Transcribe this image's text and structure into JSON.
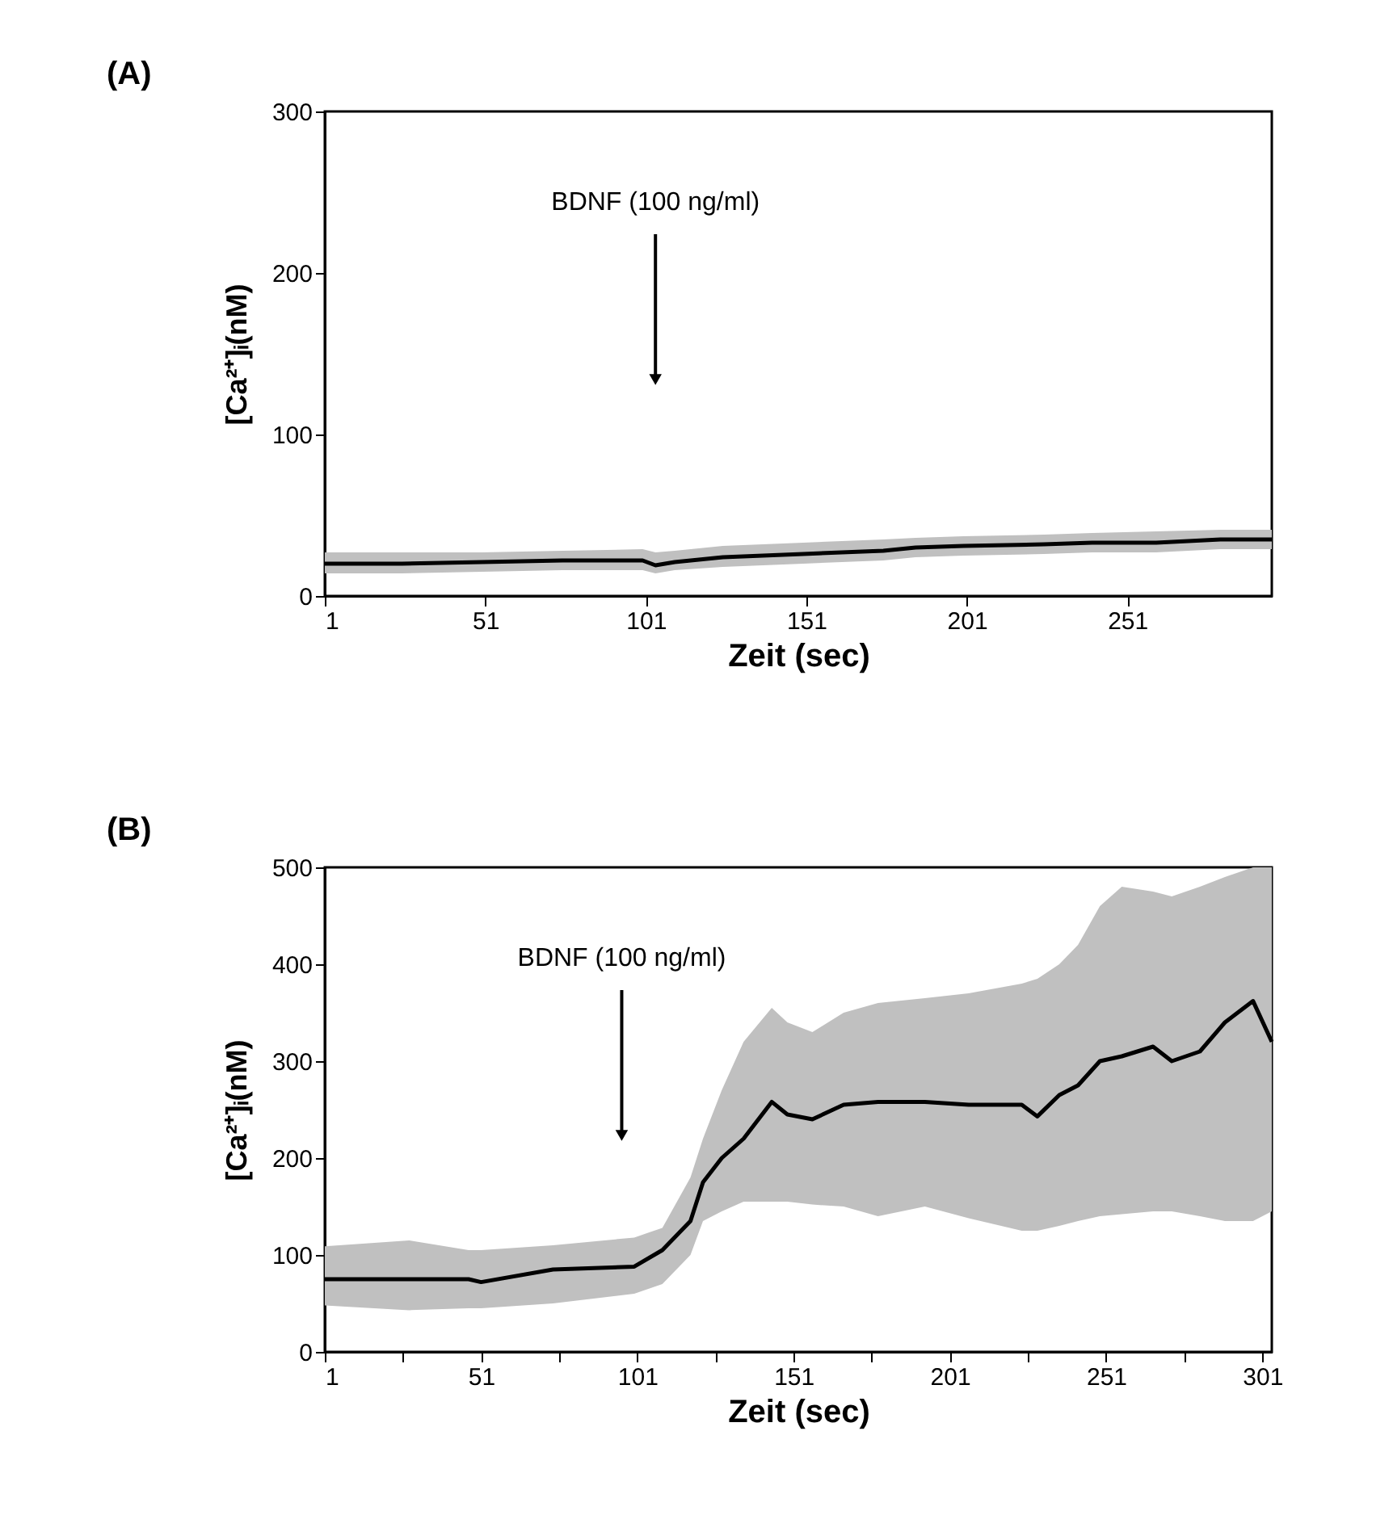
{
  "chart_data": [
    {
      "type": "line",
      "title": "(A)",
      "xlabel": "Zeit (sec)",
      "ylabel": "[Ca²⁺]ᵢ(nM)",
      "xlim": [
        1,
        296
      ],
      "ylim": [
        0,
        300
      ],
      "xticks": [
        1,
        51,
        101,
        151,
        201,
        251
      ],
      "yticks": [
        0,
        100,
        200,
        300
      ],
      "ref_lines": [
        {
          "axis": "x",
          "value": 104,
          "label": "BDNF (100 ng/ml)"
        }
      ],
      "series": [
        {
          "color": "#000000",
          "x": [
            1,
            25,
            50,
            75,
            100,
            104,
            110,
            125,
            150,
            175,
            185,
            200,
            225,
            240,
            260,
            280,
            296
          ],
          "values": [
            20,
            20,
            21,
            22,
            22,
            19,
            21,
            24,
            26,
            28,
            30,
            31,
            32,
            33,
            33,
            35,
            35
          ],
          "lower": [
            14,
            14,
            15,
            16,
            16,
            14,
            16,
            18,
            20,
            22,
            24,
            25,
            26,
            27,
            27,
            29,
            29
          ],
          "upper": [
            27,
            27,
            27,
            28,
            29,
            27,
            28,
            31,
            33,
            35,
            36,
            37,
            38,
            39,
            40,
            41,
            41
          ]
        }
      ]
    },
    {
      "type": "line",
      "title": "(B)",
      "xlabel": "Zeit (sec)",
      "ylabel": "[Ca²⁺]ᵢ(nM)",
      "xlim": [
        1,
        304
      ],
      "ylim": [
        0,
        500
      ],
      "xticks": [
        1,
        {
          "value": 26,
          "label": null
        },
        51,
        {
          "value": 76,
          "label": null
        },
        101,
        {
          "value": 126,
          "label": null
        },
        151,
        {
          "value": 176,
          "label": null
        },
        201,
        {
          "value": 226,
          "label": null
        },
        251,
        {
          "value": 276,
          "label": null
        },
        301
      ],
      "yticks": [
        0,
        100,
        200,
        300,
        400,
        500
      ],
      "ref_lines": [
        {
          "axis": "x",
          "value": 96,
          "label": "BDNF (100 ng/ml)"
        }
      ],
      "series": [
        {
          "color": "#000000",
          "x": [
            1,
            28,
            47,
            51,
            74,
            100,
            109,
            118,
            122,
            128,
            135,
            144,
            149,
            157,
            167,
            178,
            193,
            207,
            224,
            229,
            236,
            242,
            249,
            256,
            266,
            272,
            281,
            289,
            298,
            304
          ],
          "values": [
            75,
            75,
            75,
            72,
            85,
            88,
            105,
            135,
            175,
            200,
            220,
            258,
            245,
            240,
            255,
            258,
            258,
            255,
            255,
            243,
            265,
            275,
            300,
            305,
            315,
            300,
            310,
            340,
            362,
            320
          ],
          "upper": [
            109,
            115,
            105,
            105,
            110,
            118,
            128,
            180,
            220,
            270,
            320,
            355,
            340,
            330,
            350,
            360,
            365,
            370,
            380,
            385,
            400,
            420,
            460,
            480,
            475,
            470,
            480,
            490,
            500,
            500
          ],
          "lower": [
            48,
            43,
            45,
            45,
            50,
            60,
            70,
            100,
            135,
            145,
            155,
            155,
            155,
            152,
            150,
            140,
            150,
            138,
            125,
            125,
            130,
            135,
            140,
            142,
            145,
            145,
            140,
            135,
            135,
            145
          ]
        }
      ]
    }
  ]
}
